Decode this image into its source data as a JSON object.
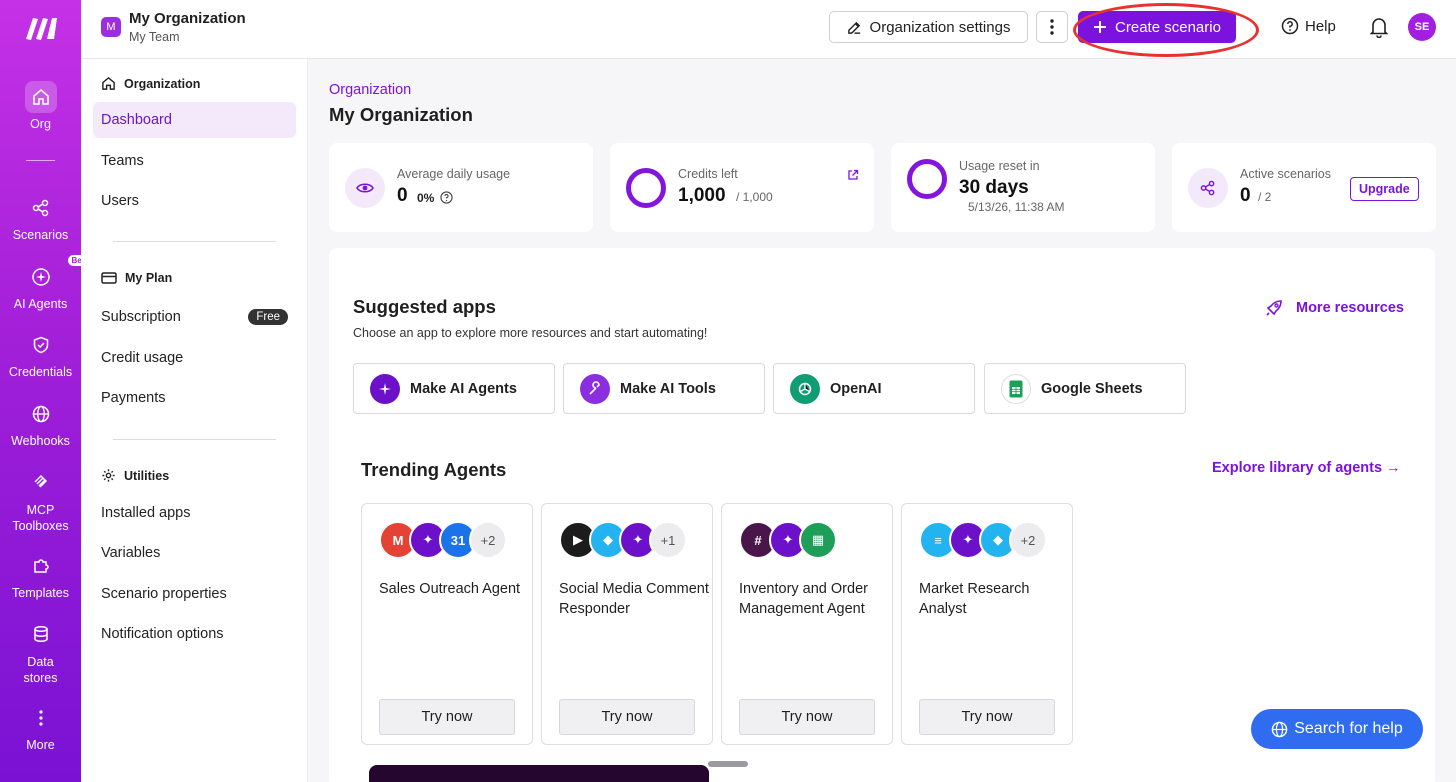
{
  "rail": {
    "items": [
      {
        "label": "Org"
      },
      {
        "label": "Scenarios"
      },
      {
        "label": "AI Agents",
        "badge": "Beta"
      },
      {
        "label": "Credentials"
      },
      {
        "label": "Webhooks"
      },
      {
        "label": "MCP Toolboxes"
      },
      {
        "label": "Templates"
      },
      {
        "label": "Data stores"
      },
      {
        "label": "More"
      }
    ]
  },
  "topbar": {
    "org_initial": "M",
    "org_name": "My Organization",
    "team_name": "My Team",
    "org_settings_label": "Organization settings",
    "create_label": "Create scenario",
    "help_label": "Help",
    "avatar_initials": "SE"
  },
  "sidebar": {
    "organization_heading": "Organization",
    "dashboard": "Dashboard",
    "teams": "Teams",
    "users": "Users",
    "plan_heading": "My Plan",
    "subscription": "Subscription",
    "free_badge": "Free",
    "credit_usage": "Credit usage",
    "payments": "Payments",
    "utilities_heading": "Utilities",
    "installed_apps": "Installed apps",
    "variables": "Variables",
    "scenario_properties": "Scenario properties",
    "notification_options": "Notification options"
  },
  "main": {
    "breadcrumb": "Organization",
    "title": "My Organization",
    "stats": {
      "avg_label": "Average daily usage",
      "avg_value": "0",
      "avg_pct": "0%",
      "credits_label": "Credits left",
      "credits_value": "1,000",
      "credits_total": "/ 1,000",
      "reset_label": "Usage reset in",
      "reset_value": "30 days",
      "reset_date": "5/13/26, 11:38 AM",
      "active_label": "Active scenarios",
      "active_value": "0",
      "active_total": "/ 2",
      "upgrade_label": "Upgrade"
    },
    "suggested": {
      "title": "Suggested apps",
      "subtitle": "Choose an app to explore more resources and start automating!",
      "more_resources": "More resources",
      "apps": [
        "Make AI Agents",
        "Make AI Tools",
        "OpenAI",
        "Google Sheets"
      ]
    },
    "trending": {
      "title": "Trending Agents",
      "explore": "Explore library of agents →",
      "try_label": "Try now",
      "cards": [
        {
          "name": "Sales Outreach Agent",
          "extra": "+2"
        },
        {
          "name": "Social Media Comment Responder",
          "extra": "+1"
        },
        {
          "name": "Inventory and Order Management Agent",
          "extra": ""
        },
        {
          "name": "Market Research Analyst",
          "extra": "+2"
        }
      ]
    },
    "search_help": "Search for help"
  },
  "colors": {
    "accent": "#7c12dd",
    "rail_top": "#c531e6",
    "rail_bottom": "#7a12d4",
    "highlight_ring": "#e8322f",
    "help_fab": "#2f6cf0"
  }
}
